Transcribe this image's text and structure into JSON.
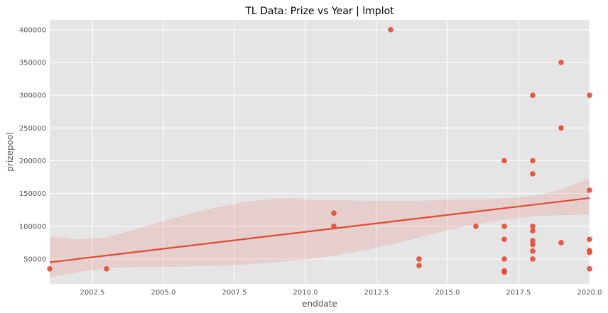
{
  "chart_data": {
    "type": "scatter",
    "title": "TL Data: Prize vs Year | lmplot",
    "xlabel": "enddate",
    "ylabel": "prizepool",
    "xlim": [
      2001.0,
      2020.0
    ],
    "ylim": [
      12000,
      415000
    ],
    "grid": true,
    "x_ticks": [
      2002.5,
      2005.0,
      2007.5,
      2010.0,
      2012.5,
      2015.0,
      2017.5,
      2020.0
    ],
    "x_tick_labels": [
      "2002.5",
      "2005.0",
      "2007.5",
      "2010.0",
      "2012.5",
      "2015.0",
      "2017.5",
      "2020.0"
    ],
    "y_ticks": [
      50000,
      100000,
      150000,
      200000,
      250000,
      300000,
      350000,
      400000
    ],
    "y_tick_labels": [
      "50000",
      "100000",
      "150000",
      "200000",
      "250000",
      "300000",
      "350000",
      "400000"
    ],
    "points": [
      {
        "x": 2001,
        "y": 35000
      },
      {
        "x": 2003,
        "y": 35000
      },
      {
        "x": 2011,
        "y": 120000
      },
      {
        "x": 2011,
        "y": 100000
      },
      {
        "x": 2013,
        "y": 400000
      },
      {
        "x": 2014,
        "y": 50000
      },
      {
        "x": 2014,
        "y": 40000
      },
      {
        "x": 2016,
        "y": 100000
      },
      {
        "x": 2017,
        "y": 200000
      },
      {
        "x": 2017,
        "y": 100000
      },
      {
        "x": 2017,
        "y": 80000
      },
      {
        "x": 2017,
        "y": 50000
      },
      {
        "x": 2017,
        "y": 32000
      },
      {
        "x": 2017,
        "y": 30000
      },
      {
        "x": 2018,
        "y": 300000
      },
      {
        "x": 2018,
        "y": 200000
      },
      {
        "x": 2018,
        "y": 180000
      },
      {
        "x": 2018,
        "y": 100000
      },
      {
        "x": 2018,
        "y": 93000
      },
      {
        "x": 2018,
        "y": 78000
      },
      {
        "x": 2018,
        "y": 72000
      },
      {
        "x": 2018,
        "y": 62000
      },
      {
        "x": 2018,
        "y": 50000
      },
      {
        "x": 2019,
        "y": 350000
      },
      {
        "x": 2019,
        "y": 250000
      },
      {
        "x": 2019,
        "y": 75000
      },
      {
        "x": 2020,
        "y": 300000
      },
      {
        "x": 2020,
        "y": 155000
      },
      {
        "x": 2020,
        "y": 80000
      },
      {
        "x": 2020,
        "y": 63000
      },
      {
        "x": 2020,
        "y": 60000
      },
      {
        "x": 2020,
        "y": 35000
      }
    ],
    "regression_line": [
      {
        "x": 2001.0,
        "y": 45000
      },
      {
        "x": 2020.0,
        "y": 143000
      }
    ],
    "confidence_band": {
      "upper": [
        {
          "x": 2001.0,
          "y": 84000
        },
        {
          "x": 2002.0,
          "y": 80000
        },
        {
          "x": 2003.0,
          "y": 83000
        },
        {
          "x": 2004.0,
          "y": 95000
        },
        {
          "x": 2005.0,
          "y": 108000
        },
        {
          "x": 2006.0,
          "y": 120000
        },
        {
          "x": 2007.0,
          "y": 130000
        },
        {
          "x": 2008.0,
          "y": 138000
        },
        {
          "x": 2009.0,
          "y": 142000
        },
        {
          "x": 2009.5,
          "y": 143000
        },
        {
          "x": 2010.0,
          "y": 140000
        },
        {
          "x": 2011.0,
          "y": 140000
        },
        {
          "x": 2012.0,
          "y": 139000
        },
        {
          "x": 2013.0,
          "y": 139000
        },
        {
          "x": 2014.0,
          "y": 139000
        },
        {
          "x": 2015.0,
          "y": 140000
        },
        {
          "x": 2016.0,
          "y": 141000
        },
        {
          "x": 2017.0,
          "y": 142000
        },
        {
          "x": 2018.0,
          "y": 146000
        },
        {
          "x": 2019.0,
          "y": 156000
        },
        {
          "x": 2020.0,
          "y": 173000
        }
      ],
      "lower": [
        {
          "x": 2001.0,
          "y": 22000
        },
        {
          "x": 2002.0,
          "y": 30000
        },
        {
          "x": 2003.0,
          "y": 36000
        },
        {
          "x": 2004.0,
          "y": 38000
        },
        {
          "x": 2005.0,
          "y": 38000
        },
        {
          "x": 2006.0,
          "y": 39000
        },
        {
          "x": 2007.0,
          "y": 40000
        },
        {
          "x": 2008.0,
          "y": 42000
        },
        {
          "x": 2009.0,
          "y": 45000
        },
        {
          "x": 2010.0,
          "y": 49000
        },
        {
          "x": 2011.0,
          "y": 55000
        },
        {
          "x": 2012.0,
          "y": 63000
        },
        {
          "x": 2013.0,
          "y": 72000
        },
        {
          "x": 2014.0,
          "y": 83000
        },
        {
          "x": 2015.0,
          "y": 94000
        },
        {
          "x": 2016.0,
          "y": 103000
        },
        {
          "x": 2017.0,
          "y": 110000
        },
        {
          "x": 2018.0,
          "y": 115000
        },
        {
          "x": 2019.0,
          "y": 117000
        },
        {
          "x": 2020.0,
          "y": 118000
        }
      ]
    },
    "colors": {
      "point": "#e24a33",
      "line": "#e24a33",
      "band": "#e24a33",
      "background": "#e5e5e5",
      "grid": "#ffffff"
    }
  }
}
